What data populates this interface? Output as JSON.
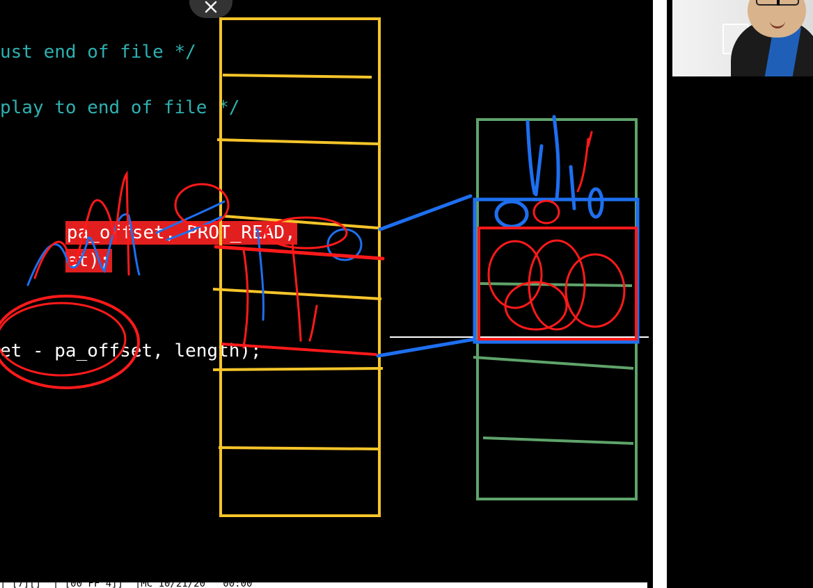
{
  "code": {
    "line1_comment": "ust end of file */",
    "line2_comment": "play to end of file */",
    "line3_highlight": "pa_offset, PROT_READ,",
    "line4_highlight": "et);",
    "line5": "et - pa_offset, length);"
  },
  "status_bar": {
    "text": "| [7][] \"| [00 FF 4]] \"|MC 10/21/20   00:00"
  },
  "controls": {
    "close_label": "close"
  },
  "colors": {
    "comment": "#2fb0b0",
    "highlight": "#e21f1f",
    "yellow_box": "#f7c52a",
    "green_box": "#5fa36b",
    "blue_annotation": "#1e6ff0",
    "red_annotation": "#ff1a1a"
  }
}
